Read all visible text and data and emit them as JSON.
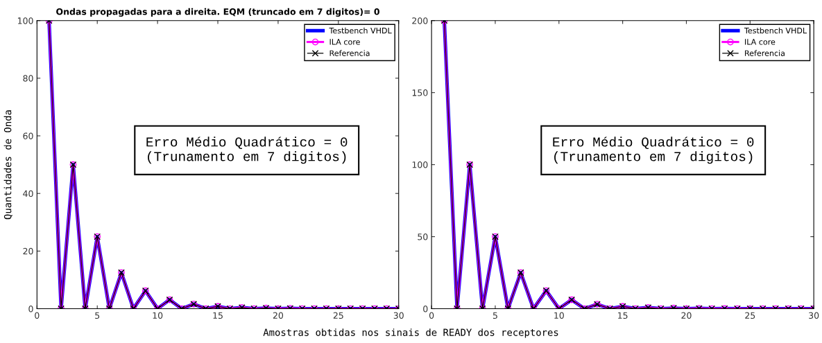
{
  "chart_data": [
    {
      "type": "line",
      "title": "Ondas propagadas para a direita. EQM (truncado em 7 digitos)= 0",
      "ylabel": "Quantidades de Onda",
      "xlabel": "Amostras obtidas nos sinais de READY dos receptores",
      "x": [
        1,
        2,
        3,
        4,
        5,
        6,
        7,
        8,
        9,
        10,
        11,
        12,
        13,
        14,
        15,
        16,
        17,
        18,
        19,
        20,
        21,
        22,
        23,
        24,
        25,
        26,
        27,
        28,
        29,
        30
      ],
      "series": [
        {
          "name": "Testbench VHDL",
          "color": "#0000ff",
          "marker": "none",
          "values": [
            100,
            0,
            50,
            0,
            25,
            0,
            12.5,
            0,
            6.2,
            0,
            3.1,
            0,
            1.6,
            0,
            0.8,
            0,
            0.4,
            0,
            0.2,
            0,
            0.1,
            0,
            0,
            0,
            0,
            0,
            0,
            0,
            0,
            0
          ]
        },
        {
          "name": "ILA core",
          "color": "#ff00ff",
          "marker": "circle",
          "values": [
            100,
            0,
            50,
            0,
            25,
            0,
            12.5,
            0,
            6.2,
            0,
            3.1,
            0,
            1.6,
            0,
            0.8,
            0,
            0.4,
            0,
            0.2,
            0,
            0.1,
            0,
            0,
            0,
            0,
            0,
            0,
            0,
            0,
            0
          ]
        },
        {
          "name": "Referencia",
          "color": "#000000",
          "marker": "cross",
          "values": [
            100,
            0,
            50,
            0,
            25,
            0,
            12.5,
            0,
            6.2,
            0,
            3.1,
            0,
            1.6,
            0,
            0.8,
            0,
            0.4,
            0,
            0.2,
            0,
            0.1,
            0,
            0,
            0,
            0,
            0,
            0,
            0,
            0,
            0
          ]
        }
      ],
      "xlim": [
        0,
        30
      ],
      "xticks": [
        0,
        5,
        10,
        15,
        20,
        25,
        30
      ],
      "ylim": [
        0,
        100
      ],
      "yticks": [
        0,
        20,
        40,
        60,
        80,
        100
      ],
      "annotations": [
        "Erro Médio Quadrático = 0\n(Trunamento em 7 digitos)"
      ],
      "legend": "top right",
      "grid": false
    },
    {
      "type": "line",
      "x": [
        1,
        2,
        3,
        4,
        5,
        6,
        7,
        8,
        9,
        10,
        11,
        12,
        13,
        14,
        15,
        16,
        17,
        18,
        19,
        20,
        21,
        22,
        23,
        24,
        25,
        26,
        27,
        28,
        29,
        30
      ],
      "series": [
        {
          "name": "Testbench VHDL",
          "color": "#0000ff",
          "marker": "none",
          "values": [
            200,
            0,
            100,
            0,
            50,
            0,
            25,
            0,
            12.5,
            0,
            6.2,
            0,
            3.1,
            0,
            1.6,
            0,
            0.8,
            0,
            0.4,
            0,
            0.2,
            0,
            0.1,
            0,
            0,
            0,
            0,
            0,
            0,
            0
          ]
        },
        {
          "name": "ILA core",
          "color": "#ff00ff",
          "marker": "circle",
          "values": [
            200,
            0,
            100,
            0,
            50,
            0,
            25,
            0,
            12.5,
            0,
            6.2,
            0,
            3.1,
            0,
            1.6,
            0,
            0.8,
            0,
            0.4,
            0,
            0.2,
            0,
            0.1,
            0,
            0,
            0,
            0,
            0,
            0,
            0
          ]
        },
        {
          "name": "Referencia",
          "color": "#000000",
          "marker": "cross",
          "values": [
            200,
            0,
            100,
            0,
            50,
            0,
            25,
            0,
            12.5,
            0,
            6.2,
            0,
            3.1,
            0,
            1.6,
            0,
            0.8,
            0,
            0.4,
            0,
            0.2,
            0,
            0.1,
            0,
            0,
            0,
            0,
            0,
            0,
            0
          ]
        }
      ],
      "xlim": [
        0,
        30
      ],
      "xticks": [
        0,
        5,
        10,
        15,
        20,
        25,
        30
      ],
      "ylim": [
        0,
        200
      ],
      "yticks": [
        0,
        50,
        100,
        150,
        200
      ],
      "annotations": [
        "Erro Médio Quadrático = 0\n(Trunamento em 7 digitos)"
      ],
      "legend": "top right",
      "grid": false
    }
  ]
}
